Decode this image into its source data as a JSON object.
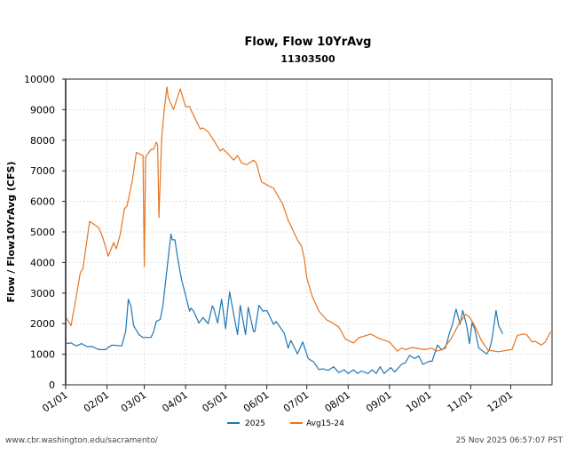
{
  "chart_data": {
    "type": "line",
    "title": "Flow, Flow 10YrAvg",
    "subtitle": "11303500",
    "xlabel": "",
    "ylabel": "Flow / Flow10YrAvg (CFS)",
    "ylim": [
      0,
      10000
    ],
    "yticks": [
      "0",
      "1000",
      "2000",
      "3000",
      "4000",
      "5000",
      "6000",
      "7000",
      "8000",
      "9000",
      "10000"
    ],
    "xlim": [
      "01/01",
      "12/31"
    ],
    "xticks": [
      "01/01",
      "02/01",
      "03/01",
      "04/01",
      "05/01",
      "06/01",
      "07/01",
      "08/01",
      "09/01",
      "10/01",
      "11/01",
      "12/01"
    ],
    "grid": true,
    "legend_position": "bottom-center",
    "series": [
      {
        "name": "2025",
        "color": "#1f77b4",
        "points": [
          [
            "01/01",
            1350
          ],
          [
            "01/05",
            1370
          ],
          [
            "01/09",
            1270
          ],
          [
            "01/13",
            1350
          ],
          [
            "01/17",
            1250
          ],
          [
            "01/21",
            1250
          ],
          [
            "01/26",
            1150
          ],
          [
            "01/31",
            1150
          ],
          [
            "02/02",
            1230
          ],
          [
            "02/05",
            1300
          ],
          [
            "02/12",
            1270
          ],
          [
            "02/15",
            1740
          ],
          [
            "02/17",
            2800
          ],
          [
            "02/19",
            2560
          ],
          [
            "02/21",
            1930
          ],
          [
            "02/25",
            1640
          ],
          [
            "02/28",
            1550
          ],
          [
            "03/06",
            1550
          ],
          [
            "03/08",
            1740
          ],
          [
            "03/10",
            2070
          ],
          [
            "03/13",
            2140
          ],
          [
            "03/15",
            2600
          ],
          [
            "03/18",
            3770
          ],
          [
            "03/21",
            4930
          ],
          [
            "03/22",
            4740
          ],
          [
            "03/24",
            4740
          ],
          [
            "03/26",
            4160
          ],
          [
            "03/29",
            3430
          ],
          [
            "03/31",
            3100
          ],
          [
            "04/04",
            2410
          ],
          [
            "04/05",
            2510
          ],
          [
            "04/07",
            2410
          ],
          [
            "04/10",
            2120
          ],
          [
            "04/11",
            2020
          ],
          [
            "04/14",
            2200
          ],
          [
            "04/18",
            2000
          ],
          [
            "04/21",
            2580
          ],
          [
            "04/22",
            2510
          ],
          [
            "04/25",
            2020
          ],
          [
            "04/28",
            2800
          ],
          [
            "05/01",
            1830
          ],
          [
            "05/04",
            3040
          ],
          [
            "05/07",
            2320
          ],
          [
            "05/10",
            1640
          ],
          [
            "05/12",
            2600
          ],
          [
            "05/16",
            1640
          ],
          [
            "05/18",
            2540
          ],
          [
            "05/22",
            1740
          ],
          [
            "05/23",
            1740
          ],
          [
            "05/26",
            2600
          ],
          [
            "05/29",
            2410
          ],
          [
            "06/01",
            2430
          ],
          [
            "06/06",
            1980
          ],
          [
            "06/08",
            2070
          ],
          [
            "06/14",
            1690
          ],
          [
            "06/17",
            1200
          ],
          [
            "06/19",
            1450
          ],
          [
            "06/24",
            1010
          ],
          [
            "06/28",
            1400
          ],
          [
            "07/02",
            860
          ],
          [
            "07/06",
            750
          ],
          [
            "07/10",
            500
          ],
          [
            "07/13",
            520
          ],
          [
            "07/17",
            470
          ],
          [
            "07/21",
            590
          ],
          [
            "07/25",
            400
          ],
          [
            "07/29",
            490
          ],
          [
            "08/01",
            370
          ],
          [
            "08/05",
            490
          ],
          [
            "08/08",
            370
          ],
          [
            "08/11",
            450
          ],
          [
            "08/16",
            370
          ],
          [
            "08/19",
            490
          ],
          [
            "08/22",
            370
          ],
          [
            "08/25",
            590
          ],
          [
            "08/28",
            370
          ],
          [
            "09/02",
            560
          ],
          [
            "09/05",
            420
          ],
          [
            "09/10",
            670
          ],
          [
            "09/13",
            720
          ],
          [
            "09/16",
            960
          ],
          [
            "09/20",
            860
          ],
          [
            "09/23",
            940
          ],
          [
            "09/26",
            670
          ],
          [
            "10/01",
            770
          ],
          [
            "10/03",
            770
          ],
          [
            "10/07",
            1300
          ],
          [
            "10/10",
            1150
          ],
          [
            "10/13",
            1200
          ],
          [
            "10/16",
            1690
          ],
          [
            "10/18",
            1930
          ],
          [
            "10/21",
            2480
          ],
          [
            "10/24",
            1980
          ],
          [
            "10/26",
            2430
          ],
          [
            "10/29",
            1930
          ],
          [
            "10/31",
            1350
          ],
          [
            "11/02",
            2020
          ],
          [
            "11/04",
            1830
          ],
          [
            "11/07",
            1200
          ],
          [
            "11/13",
            1010
          ],
          [
            "11/15",
            1150
          ],
          [
            "11/17",
            1490
          ],
          [
            "11/20",
            2430
          ],
          [
            "11/22",
            1930
          ],
          [
            "11/25",
            1670
          ]
        ]
      },
      {
        "name": "Avg15-24",
        "color": "#e8741e",
        "points": [
          [
            "01/01",
            2220
          ],
          [
            "01/05",
            1930
          ],
          [
            "01/08",
            2650
          ],
          [
            "01/12",
            3670
          ],
          [
            "01/14",
            3810
          ],
          [
            "01/19",
            5350
          ],
          [
            "01/26",
            5130
          ],
          [
            "01/29",
            4800
          ],
          [
            "02/02",
            4210
          ],
          [
            "02/06",
            4650
          ],
          [
            "02/08",
            4450
          ],
          [
            "02/11",
            4940
          ],
          [
            "02/14",
            5750
          ],
          [
            "02/16",
            5850
          ],
          [
            "02/20",
            6680
          ],
          [
            "02/23",
            7600
          ],
          [
            "02/28",
            7500
          ],
          [
            "03/01",
            3870
          ],
          [
            "03/02",
            7450
          ],
          [
            "03/06",
            7700
          ],
          [
            "03/08",
            7700
          ],
          [
            "03/10",
            7940
          ],
          [
            "03/11",
            7850
          ],
          [
            "03/12",
            5470
          ],
          [
            "03/14",
            8030
          ],
          [
            "03/16",
            9000
          ],
          [
            "03/18",
            9740
          ],
          [
            "03/19",
            9390
          ],
          [
            "03/23",
            9010
          ],
          [
            "03/28",
            9680
          ],
          [
            "04/01",
            9100
          ],
          [
            "04/04",
            9100
          ],
          [
            "04/07",
            8810
          ],
          [
            "04/12",
            8370
          ],
          [
            "04/14",
            8400
          ],
          [
            "04/18",
            8280
          ],
          [
            "04/22",
            8000
          ],
          [
            "04/27",
            7650
          ],
          [
            "04/29",
            7720
          ],
          [
            "05/04",
            7500
          ],
          [
            "05/07",
            7350
          ],
          [
            "05/10",
            7500
          ],
          [
            "05/13",
            7260
          ],
          [
            "05/17",
            7200
          ],
          [
            "05/22",
            7350
          ],
          [
            "05/24",
            7260
          ],
          [
            "05/28",
            6630
          ],
          [
            "06/01",
            6540
          ],
          [
            "06/06",
            6430
          ],
          [
            "06/13",
            5900
          ],
          [
            "06/17",
            5380
          ],
          [
            "06/24",
            4740
          ],
          [
            "06/27",
            4540
          ],
          [
            "06/29",
            4160
          ],
          [
            "07/01",
            3490
          ],
          [
            "07/05",
            2900
          ],
          [
            "07/10",
            2410
          ],
          [
            "07/16",
            2120
          ],
          [
            "07/18",
            2080
          ],
          [
            "07/25",
            1890
          ],
          [
            "07/30",
            1490
          ],
          [
            "08/05",
            1370
          ],
          [
            "08/09",
            1540
          ],
          [
            "08/18",
            1660
          ],
          [
            "08/24",
            1520
          ],
          [
            "09/01",
            1400
          ],
          [
            "09/07",
            1100
          ],
          [
            "09/10",
            1200
          ],
          [
            "09/13",
            1150
          ],
          [
            "09/18",
            1220
          ],
          [
            "09/27",
            1150
          ],
          [
            "10/03",
            1200
          ],
          [
            "10/06",
            1100
          ],
          [
            "10/11",
            1150
          ],
          [
            "10/17",
            1490
          ],
          [
            "10/23",
            1980
          ],
          [
            "10/28",
            2300
          ],
          [
            "10/31",
            2220
          ],
          [
            "11/04",
            1930
          ],
          [
            "11/09",
            1450
          ],
          [
            "11/14",
            1130
          ],
          [
            "11/22",
            1080
          ],
          [
            "12/02",
            1160
          ],
          [
            "12/06",
            1620
          ],
          [
            "12/11",
            1660
          ],
          [
            "12/13",
            1640
          ],
          [
            "12/17",
            1400
          ],
          [
            "12/19",
            1430
          ],
          [
            "12/24",
            1300
          ],
          [
            "12/27",
            1400
          ],
          [
            "12/31",
            1740
          ]
        ]
      }
    ]
  },
  "footer": {
    "url": "www.cbr.washington.edu/sacramento/",
    "timestamp": "25 Nov 2025 06:57:07 PST"
  }
}
